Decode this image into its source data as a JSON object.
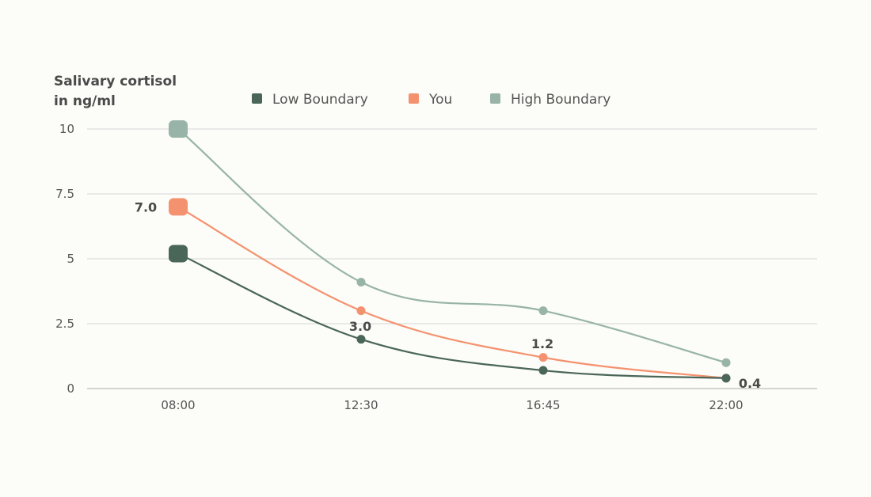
{
  "chart_data": {
    "type": "line",
    "ylabel_lines": [
      "Salivary cortisol",
      "in ng/ml"
    ],
    "categories": [
      "08:00",
      "12:30",
      "16:45",
      "22:00"
    ],
    "ylim": [
      0,
      10
    ],
    "yticks": [
      0,
      2.5,
      5,
      7.5,
      10
    ],
    "ytick_labels": [
      "0",
      "2.5",
      "5",
      "7.5",
      "10"
    ],
    "grid": true,
    "legend_position": "top",
    "series": [
      {
        "name": "Low Boundary",
        "color": "#4a6659",
        "values": [
          5.2,
          1.9,
          0.7,
          0.4
        ]
      },
      {
        "name": "You",
        "color": "#f4926f",
        "values": [
          7.0,
          3.0,
          1.2,
          0.4
        ]
      },
      {
        "name": "High Boundary",
        "color": "#98b4a8",
        "values": [
          10,
          4.1,
          3.0,
          1.0
        ]
      }
    ],
    "data_labels": [
      "7.0",
      "3.0",
      "1.2",
      "0.4"
    ]
  }
}
